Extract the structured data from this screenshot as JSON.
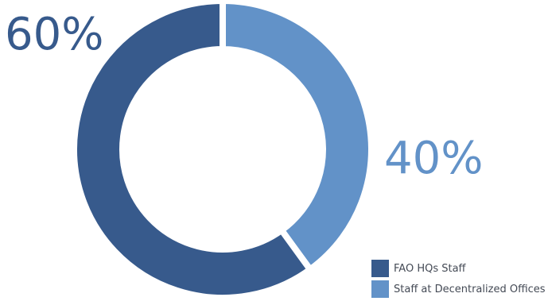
{
  "chart_data": {
    "type": "pie",
    "title": "",
    "categories": [
      "FAO HQs Staff",
      "Staff at Decentralized Offices"
    ],
    "values": [
      60,
      40
    ],
    "value_labels": [
      "60%",
      "40%"
    ],
    "series": [
      {
        "name": "FAO HQs Staff",
        "value": 60,
        "label": "60%"
      },
      {
        "name": "Staff at Decentralized Offices",
        "value": 40,
        "label": "40%"
      }
    ],
    "legend_position": "bottom-right",
    "grid": false
  },
  "colors": {
    "hq": "#375a8c",
    "decentralized": "#6292c8",
    "background": "#ffffff"
  },
  "legend": {
    "items": [
      {
        "label": "FAO HQs Staff",
        "color": "#375a8c"
      },
      {
        "label": "Staff at Decentralized Offices",
        "color": "#6292c8"
      }
    ]
  }
}
